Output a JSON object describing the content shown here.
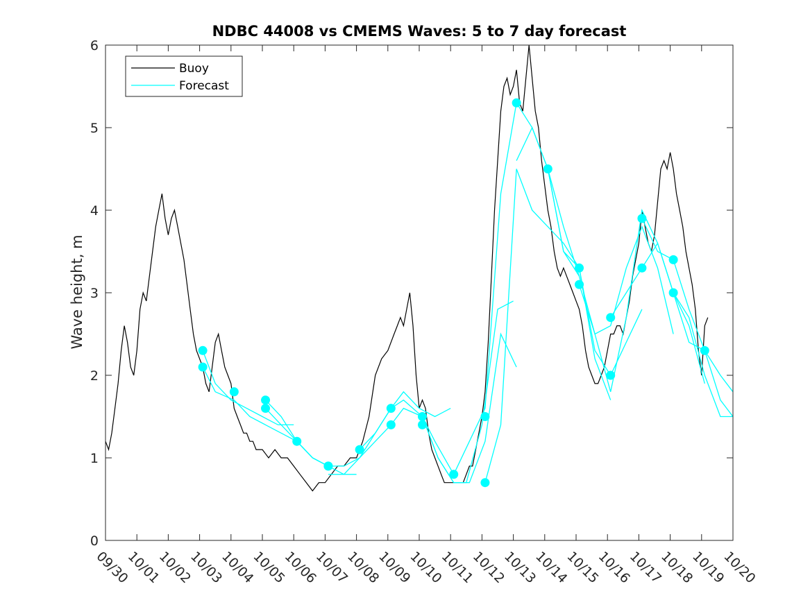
{
  "chart_data": {
    "type": "line",
    "title": "NDBC 44008 vs CMEMS Waves: 5 to 7 day forecast",
    "xlabel": "",
    "ylabel": "Wave height, m",
    "xlim": [
      0,
      20
    ],
    "ylim": [
      0,
      6
    ],
    "x_tick_labels": [
      "09/30",
      "10/01",
      "10/02",
      "10/03",
      "10/04",
      "10/05",
      "10/06",
      "10/07",
      "10/08",
      "10/09",
      "10/10",
      "10/11",
      "10/12",
      "10/13",
      "10/14",
      "10/15",
      "10/16",
      "10/17",
      "10/18",
      "10/19",
      "10/20"
    ],
    "y_ticks": [
      0,
      1,
      2,
      3,
      4,
      5,
      6
    ],
    "legend": {
      "position": "top-left",
      "entries": [
        "Buoy",
        "Forecast"
      ]
    },
    "colors": {
      "buoy": "#000000",
      "forecast": "#00ffff",
      "axis": "#262626"
    },
    "buoy": {
      "x": [
        0,
        0.1,
        0.2,
        0.3,
        0.4,
        0.5,
        0.6,
        0.7,
        0.8,
        0.9,
        1.0,
        1.1,
        1.2,
        1.3,
        1.4,
        1.5,
        1.6,
        1.7,
        1.8,
        1.9,
        2.0,
        2.1,
        2.2,
        2.3,
        2.4,
        2.5,
        2.6,
        2.7,
        2.8,
        2.9,
        3.0,
        3.1,
        3.2,
        3.3,
        3.4,
        3.5,
        3.6,
        3.7,
        3.8,
        3.9,
        4.0,
        4.1,
        4.2,
        4.3,
        4.4,
        4.5,
        4.6,
        4.7,
        4.8,
        4.9,
        5.0,
        5.2,
        5.4,
        5.6,
        5.8,
        6.0,
        6.2,
        6.4,
        6.6,
        6.8,
        7.0,
        7.2,
        7.4,
        7.6,
        7.8,
        8.0,
        8.2,
        8.4,
        8.6,
        8.8,
        9.0,
        9.1,
        9.2,
        9.3,
        9.4,
        9.5,
        9.6,
        9.7,
        9.8,
        9.9,
        10.0,
        10.1,
        10.2,
        10.3,
        10.4,
        10.5,
        10.6,
        10.7,
        10.8,
        10.9,
        11.0,
        11.1,
        11.2,
        11.3,
        11.4,
        11.5,
        11.6,
        11.7,
        11.8,
        11.9,
        12.0,
        12.1,
        12.2,
        12.3,
        12.4,
        12.5,
        12.6,
        12.7,
        12.8,
        12.9,
        13.0,
        13.1,
        13.2,
        13.3,
        13.4,
        13.5,
        13.6,
        13.7,
        13.8,
        13.9,
        14.0,
        14.1,
        14.2,
        14.3,
        14.4,
        14.5,
        14.6,
        14.7,
        14.8,
        14.9,
        15.0,
        15.1,
        15.2,
        15.3,
        15.4,
        15.5,
        15.6,
        15.7,
        15.8,
        15.9,
        16.0,
        16.1,
        16.2,
        16.3,
        16.4,
        16.5,
        16.6,
        16.7,
        16.8,
        16.9,
        17.0,
        17.1,
        17.2,
        17.3,
        17.4,
        17.5,
        17.6,
        17.7,
        17.8,
        17.9,
        18.0,
        18.1,
        18.2,
        18.3,
        18.4,
        18.5,
        18.6,
        18.7,
        18.8,
        18.9,
        19.0,
        19.1,
        19.2
      ],
      "y": [
        1.2,
        1.1,
        1.3,
        1.6,
        1.9,
        2.3,
        2.6,
        2.4,
        2.1,
        2.0,
        2.3,
        2.8,
        3.0,
        2.9,
        3.2,
        3.5,
        3.8,
        4.0,
        4.2,
        3.9,
        3.7,
        3.9,
        4.0,
        3.8,
        3.6,
        3.4,
        3.1,
        2.8,
        2.5,
        2.3,
        2.2,
        2.1,
        1.9,
        1.8,
        2.1,
        2.4,
        2.5,
        2.3,
        2.1,
        2.0,
        1.9,
        1.6,
        1.5,
        1.4,
        1.3,
        1.3,
        1.2,
        1.2,
        1.1,
        1.1,
        1.1,
        1.0,
        1.1,
        1.0,
        1.0,
        0.9,
        0.8,
        0.7,
        0.6,
        0.7,
        0.7,
        0.8,
        0.9,
        0.9,
        1.0,
        1.0,
        1.2,
        1.5,
        2.0,
        2.2,
        2.3,
        2.4,
        2.5,
        2.6,
        2.7,
        2.6,
        2.8,
        3.0,
        2.6,
        2.0,
        1.6,
        1.7,
        1.6,
        1.3,
        1.1,
        1.0,
        0.9,
        0.8,
        0.7,
        0.7,
        0.7,
        0.7,
        0.7,
        0.7,
        0.7,
        0.8,
        0.9,
        0.9,
        1.1,
        1.3,
        1.5,
        1.8,
        2.4,
        3.2,
        4.0,
        4.6,
        5.2,
        5.5,
        5.6,
        5.4,
        5.5,
        5.7,
        5.3,
        5.2,
        5.6,
        6.0,
        5.6,
        5.2,
        5.0,
        4.6,
        4.3,
        4.0,
        3.8,
        3.5,
        3.3,
        3.2,
        3.3,
        3.2,
        3.1,
        3.0,
        2.9,
        2.8,
        2.6,
        2.3,
        2.1,
        2.0,
        1.9,
        1.9,
        2.0,
        2.1,
        2.3,
        2.5,
        2.5,
        2.6,
        2.6,
        2.5,
        2.7,
        2.9,
        3.2,
        3.4,
        3.6,
        4.0,
        3.8,
        3.6,
        3.5,
        3.7,
        4.1,
        4.5,
        4.6,
        4.5,
        4.7,
        4.5,
        4.2,
        4.0,
        3.8,
        3.5,
        3.3,
        3.1,
        2.8,
        2.3,
        2.0,
        2.6,
        2.7
      ]
    },
    "forecast_series": [
      {
        "x": [
          3.1,
          3.5,
          4.0,
          4.5,
          5.0,
          5.5,
          6.0
        ],
        "y": [
          2.3,
          1.9,
          1.7,
          1.6,
          1.5,
          1.4,
          1.4
        ]
      },
      {
        "x": [
          3.1,
          3.5,
          4.1,
          4.6,
          5.1,
          5.6,
          6.1,
          6.6,
          7.1
        ],
        "y": [
          2.1,
          1.8,
          1.7,
          1.5,
          1.4,
          1.3,
          1.2,
          1.0,
          0.9
        ]
      },
      {
        "x": [
          5.1,
          5.6,
          6.1,
          6.6,
          7.1,
          7.6,
          8.0
        ],
        "y": [
          1.7,
          1.5,
          1.2,
          1.0,
          0.9,
          0.8,
          0.8
        ]
      },
      {
        "x": [
          5.1,
          5.6,
          6.1,
          6.6,
          7.1,
          7.6,
          8.1,
          8.6,
          9.1
        ],
        "y": [
          1.6,
          1.4,
          1.2,
          1.0,
          0.9,
          0.9,
          1.0,
          1.2,
          1.4
        ]
      },
      {
        "x": [
          7.1,
          7.6,
          8.1,
          8.6,
          9.1,
          9.5,
          10.0,
          10.5,
          11.0
        ],
        "y": [
          0.8,
          0.8,
          1.0,
          1.3,
          1.6,
          1.8,
          1.6,
          1.5,
          1.6
        ]
      },
      {
        "x": [
          8.1,
          8.6,
          9.1,
          9.5,
          10.1,
          10.5,
          11.1
        ],
        "y": [
          1.1,
          1.3,
          1.6,
          1.7,
          1.5,
          1.2,
          0.8
        ]
      },
      {
        "x": [
          9.1,
          9.5,
          10.1,
          10.6,
          11.1,
          11.5,
          12.0,
          12.5,
          13.0
        ],
        "y": [
          1.4,
          1.6,
          1.5,
          1.0,
          0.7,
          0.7,
          1.4,
          2.8,
          2.9
        ]
      },
      {
        "x": [
          10.1,
          10.6,
          11.1,
          11.6,
          12.1,
          12.6,
          13.1
        ],
        "y": [
          1.5,
          1.0,
          0.7,
          0.7,
          1.2,
          2.5,
          2.1
        ]
      },
      {
        "x": [
          11.1,
          11.6,
          12.1,
          12.6,
          13.1,
          13.6,
          14.1,
          14.6,
          15.1
        ],
        "y": [
          0.8,
          1.2,
          1.6,
          4.2,
          5.3,
          5.0,
          4.5,
          3.8,
          3.2
        ]
      },
      {
        "x": [
          12.1,
          12.6,
          13.1,
          13.6,
          14.1,
          14.6,
          15.1,
          15.6,
          16.1
        ],
        "y": [
          0.7,
          1.4,
          4.5,
          4.0,
          3.8,
          3.6,
          3.3,
          2.2,
          1.7
        ]
      },
      {
        "x": [
          13.1,
          13.6,
          14.1,
          14.6,
          15.1,
          15.6,
          16.1,
          16.6,
          17.1
        ],
        "y": [
          4.6,
          5.0,
          4.5,
          3.5,
          3.3,
          2.3,
          2.0,
          2.4,
          2.8
        ]
      },
      {
        "x": [
          14.1,
          14.6,
          15.1,
          15.6,
          16.1,
          16.6,
          17.1,
          17.6,
          18.1
        ],
        "y": [
          4.5,
          3.5,
          3.2,
          2.5,
          2.6,
          3.3,
          3.8,
          3.3,
          2.5
        ]
      },
      {
        "x": [
          15.1,
          15.6,
          16.1,
          16.6,
          17.1,
          17.6,
          18.1,
          18.6,
          19.1
        ],
        "y": [
          3.1,
          2.5,
          1.8,
          2.7,
          4.0,
          3.6,
          3.0,
          2.6,
          1.9
        ]
      },
      {
        "x": [
          16.1,
          16.6,
          17.1,
          17.6,
          18.1,
          18.6,
          19.1,
          19.6,
          20.0
        ],
        "y": [
          2.7,
          3.0,
          3.3,
          3.6,
          3.0,
          2.7,
          2.0,
          1.5,
          1.5
        ]
      },
      {
        "x": [
          17.1,
          17.6,
          18.1,
          18.6,
          19.1,
          19.6,
          20.0
        ],
        "y": [
          3.9,
          3.5,
          3.4,
          2.8,
          2.3,
          2.0,
          1.8
        ]
      },
      {
        "x": [
          18.1,
          18.6,
          19.1,
          19.6,
          20.0
        ],
        "y": [
          3.0,
          2.4,
          2.3,
          1.7,
          1.5
        ]
      }
    ],
    "forecast_markers": {
      "x": [
        3.1,
        3.1,
        4.1,
        5.1,
        5.1,
        6.1,
        7.1,
        7.1,
        8.1,
        9.1,
        9.1,
        10.1,
        10.1,
        11.1,
        12.1,
        12.1,
        13.1,
        14.1,
        15.1,
        15.1,
        16.1,
        16.1,
        17.1,
        17.1,
        18.1,
        18.1,
        19.1
      ],
      "y": [
        2.3,
        2.1,
        1.8,
        1.7,
        1.6,
        1.2,
        0.9,
        0.9,
        1.1,
        1.6,
        1.4,
        1.5,
        1.4,
        0.8,
        1.5,
        0.7,
        5.3,
        4.5,
        3.3,
        3.1,
        2.7,
        2.0,
        3.9,
        3.3,
        3.4,
        3.0,
        2.3
      ]
    }
  }
}
